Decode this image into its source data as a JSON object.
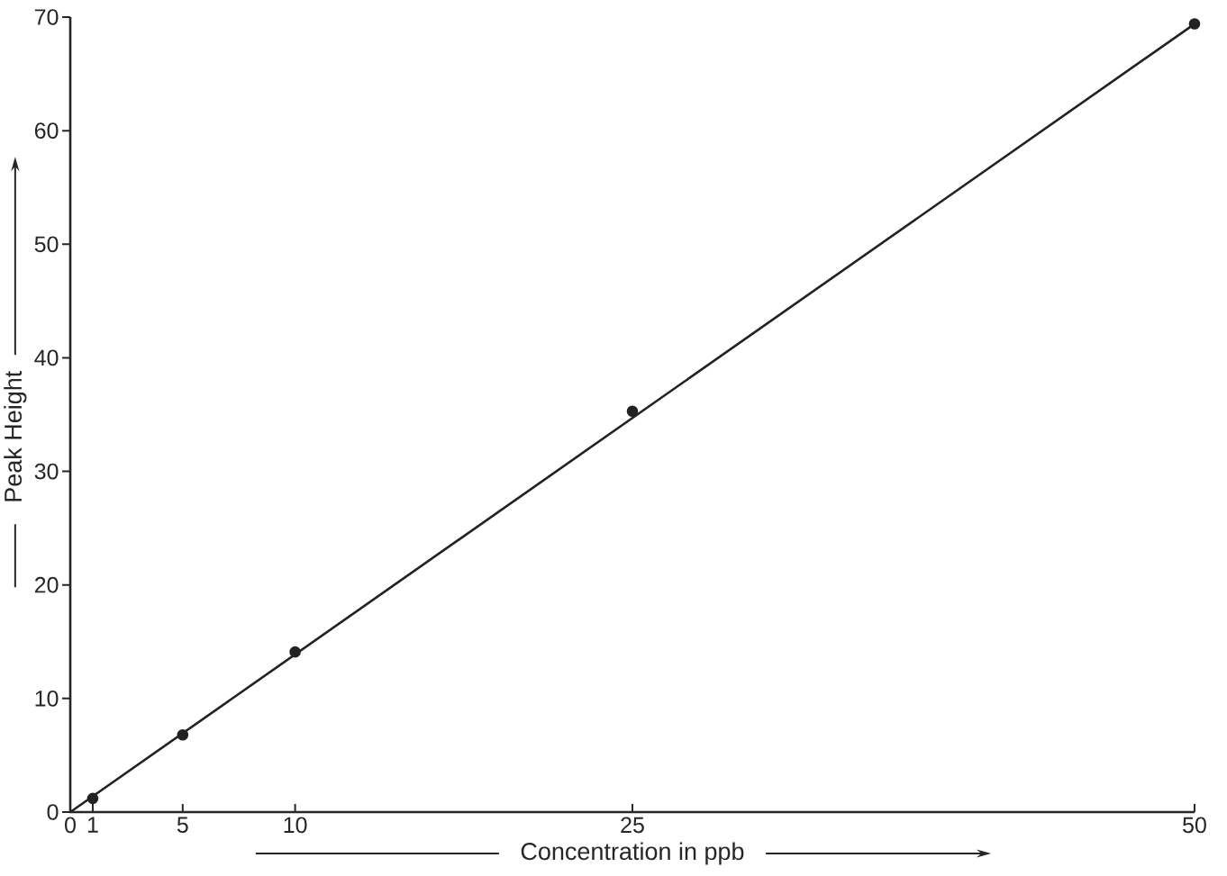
{
  "chart_data": {
    "type": "scatter",
    "xlabel": "Concentration in ppb",
    "ylabel": "Peak Height",
    "series": [
      {
        "type": "line",
        "color": "#222222",
        "x": [
          0,
          50
        ],
        "values": [
          0,
          69.4
        ],
        "marker": "none"
      },
      {
        "color": "#222222",
        "x": [
          1,
          5,
          10,
          25,
          50
        ],
        "values": [
          1.2,
          6.8,
          14.1,
          35.3,
          69.4
        ],
        "marker": "circle"
      }
    ],
    "xlim": [
      0,
      50
    ],
    "ylim": [
      0,
      70
    ],
    "xticks": [
      0,
      1,
      5,
      10,
      25,
      50
    ],
    "yticks": [
      0,
      10,
      20,
      30,
      40,
      50,
      60,
      70
    ]
  }
}
